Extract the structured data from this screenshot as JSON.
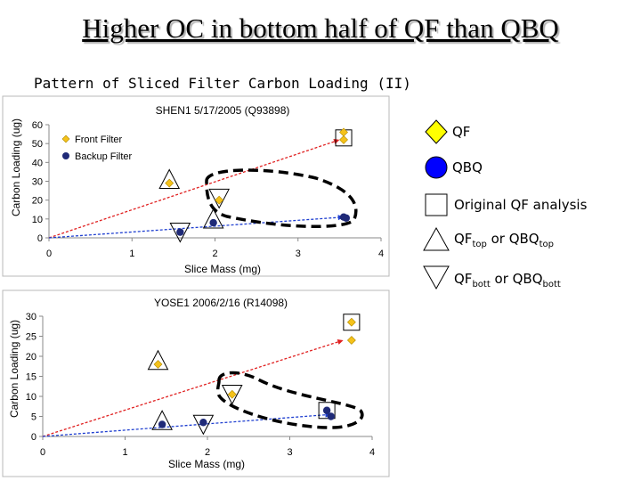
{
  "slide": {
    "title": "Higher OC in bottom half of QF than QBQ",
    "subtitle": "Pattern of Sliced Filter Carbon Loading (II)"
  },
  "legend": {
    "qf": "QF",
    "qbq": "QBQ",
    "original": "Original QF analysis",
    "top_main": "QF",
    "top_sub": "top",
    "top_or": " or QBQ",
    "top_sub2": "top",
    "bott_main": "QF",
    "bott_sub": "bott",
    "bott_or": " or QBQ",
    "bott_sub2": "bott"
  },
  "colors": {
    "front": "#f5c21a",
    "backup": "#1f2a78",
    "front_line": "#e02020",
    "backup_line": "#1f3fd0",
    "legend_qf": "#ffff00",
    "legend_qbq": "#0000ff"
  },
  "chart_data": [
    {
      "type": "scatter",
      "title": "SHEN1 5/17/2005 (Q93898)",
      "xlabel": "Slice Mass (mg)",
      "ylabel": "Carbon Loading (ug)",
      "xlim": [
        0,
        4
      ],
      "ylim": [
        0,
        60
      ],
      "xticks": [
        0,
        1,
        2,
        3,
        4
      ],
      "yticks": [
        0,
        10,
        20,
        30,
        40,
        50,
        60
      ],
      "legend_entries": [
        "Front Filter",
        "Backup Filter"
      ],
      "series": [
        {
          "name": "Front Filter",
          "points": [
            [
              1.45,
              29
            ],
            [
              2.05,
              20
            ],
            [
              3.55,
              52
            ],
            [
              3.55,
              56
            ]
          ]
        },
        {
          "name": "Backup Filter",
          "points": [
            [
              1.58,
              3
            ],
            [
              1.98,
              8
            ],
            [
              3.58,
              10.5
            ],
            [
              3.55,
              11
            ]
          ]
        }
      ],
      "trend": [
        {
          "series": "Front Filter",
          "from": [
            0,
            0
          ],
          "to": [
            3.5,
            52
          ]
        },
        {
          "series": "Backup Filter",
          "from": [
            0,
            0
          ],
          "to": [
            3.55,
            11
          ]
        }
      ],
      "markers": {
        "square": [
          [
            3.55,
            53
          ]
        ],
        "triangle_up": [
          [
            1.45,
            30
          ],
          [
            1.98,
            9
          ]
        ],
        "triangle_down": [
          [
            1.58,
            4
          ],
          [
            2.05,
            22
          ]
        ]
      }
    },
    {
      "type": "scatter",
      "title": "YOSE1 2006/2/16 (R14098)",
      "xlabel": "Slice Mass (mg)",
      "ylabel": "Carbon Loading (ug)",
      "xlim": [
        0,
        4
      ],
      "ylim": [
        0,
        30
      ],
      "xticks": [
        0,
        1,
        2,
        3,
        4
      ],
      "yticks": [
        0,
        5,
        10,
        15,
        20,
        25,
        30
      ],
      "series": [
        {
          "name": "Front Filter",
          "points": [
            [
              1.4,
              18
            ],
            [
              2.3,
              10.5
            ],
            [
              3.75,
              28.5
            ],
            [
              3.75,
              24
            ]
          ]
        },
        {
          "name": "Backup Filter",
          "points": [
            [
              1.45,
              3
            ],
            [
              1.95,
              3.5
            ],
            [
              3.45,
              6.5
            ],
            [
              3.5,
              5
            ]
          ]
        }
      ],
      "trend": [
        {
          "series": "Front Filter",
          "from": [
            0,
            0
          ],
          "to": [
            3.65,
            24
          ]
        },
        {
          "series": "Backup Filter",
          "from": [
            0,
            0
          ],
          "to": [
            3.5,
            5.5
          ]
        }
      ],
      "markers": {
        "square": [
          [
            3.75,
            28.5
          ],
          [
            3.45,
            6.5
          ]
        ],
        "triangle_up": [
          [
            1.4,
            18.5
          ],
          [
            1.45,
            3.5
          ]
        ],
        "triangle_down": [
          [
            1.95,
            3.5
          ],
          [
            2.3,
            11
          ]
        ]
      }
    }
  ]
}
